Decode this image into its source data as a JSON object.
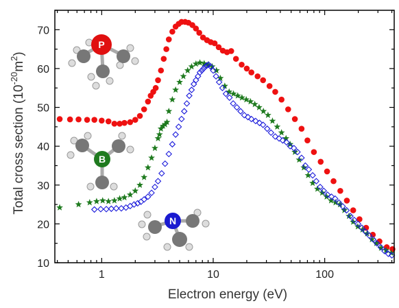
{
  "chart_data": {
    "type": "scatter",
    "x_scale": "log",
    "xlim": [
      0.38,
      420
    ],
    "ylim": [
      10,
      75
    ],
    "grid": false,
    "xlabel": "Electron energy (eV)",
    "ylabel_main": "Total cross section (10",
    "ylabel_exp": "-20",
    "ylabel_mid": "m",
    "ylabel_exp2": "2",
    "ylabel_end": ")",
    "x_ticks": [
      {
        "value": 1,
        "label": "1"
      },
      {
        "value": 10,
        "label": "10"
      },
      {
        "value": 100,
        "label": "100"
      }
    ],
    "y_ticks": [
      {
        "value": 10,
        "label": "10"
      },
      {
        "value": 20,
        "label": "20"
      },
      {
        "value": 30,
        "label": "30"
      },
      {
        "value": 40,
        "label": "40"
      },
      {
        "value": 50,
        "label": "50"
      },
      {
        "value": 60,
        "label": "60"
      },
      {
        "value": 70,
        "label": "70"
      }
    ],
    "series": [
      {
        "marker": "filled-circle",
        "color": "#ee1111",
        "points": [
          [
            0.42,
            47.0
          ],
          [
            0.52,
            46.9
          ],
          [
            0.62,
            46.9
          ],
          [
            0.74,
            46.8
          ],
          [
            0.86,
            46.8
          ],
          [
            1.0,
            46.6
          ],
          [
            1.15,
            46.4
          ],
          [
            1.3,
            45.8
          ],
          [
            1.45,
            45.8
          ],
          [
            1.6,
            46.0
          ],
          [
            1.8,
            46.2
          ],
          [
            2.0,
            46.8
          ],
          [
            2.2,
            47.8
          ],
          [
            2.4,
            49.5
          ],
          [
            2.6,
            51.5
          ],
          [
            2.75,
            53.0
          ],
          [
            2.9,
            54.0
          ],
          [
            3.05,
            55.0
          ],
          [
            3.2,
            57.0
          ],
          [
            3.4,
            59.5
          ],
          [
            3.6,
            62.5
          ],
          [
            3.8,
            65.0
          ],
          [
            4.0,
            67.5
          ],
          [
            4.3,
            69.5
          ],
          [
            4.6,
            70.8
          ],
          [
            4.9,
            71.5
          ],
          [
            5.2,
            72.0
          ],
          [
            5.6,
            72.0
          ],
          [
            6.0,
            71.8
          ],
          [
            6.5,
            71.2
          ],
          [
            7.0,
            70.3
          ],
          [
            7.5,
            69.2
          ],
          [
            8.1,
            68.0
          ],
          [
            8.8,
            67.3
          ],
          [
            9.5,
            66.8
          ],
          [
            10.3,
            66.5
          ],
          [
            11.2,
            65.5
          ],
          [
            12.2,
            64.6
          ],
          [
            13.3,
            64.2
          ],
          [
            14.5,
            64.5
          ],
          [
            16,
            62.5
          ],
          [
            18,
            61.0
          ],
          [
            20,
            60.0
          ],
          [
            22,
            59.0
          ],
          [
            25,
            58.0
          ],
          [
            28,
            57.0
          ],
          [
            32,
            55.5
          ],
          [
            36,
            54.0
          ],
          [
            41,
            52.0
          ],
          [
            47,
            49.5
          ],
          [
            54,
            47.0
          ],
          [
            62,
            44.5
          ],
          [
            70,
            41.5
          ],
          [
            80,
            38.5
          ],
          [
            92,
            36.0
          ],
          [
            105,
            33.5
          ],
          [
            120,
            31.0
          ],
          [
            138,
            28.5
          ],
          [
            158,
            26.0
          ],
          [
            180,
            23.5
          ],
          [
            205,
            21.2
          ],
          [
            235,
            19.0
          ],
          [
            270,
            17.2
          ],
          [
            310,
            15.5
          ],
          [
            360,
            14.0
          ],
          [
            405,
            13.5
          ]
        ]
      },
      {
        "marker": "filled-star",
        "color": "#1e7a1e",
        "points": [
          [
            0.42,
            24.2
          ],
          [
            0.62,
            25.0
          ],
          [
            0.78,
            25.5
          ],
          [
            0.9,
            25.8
          ],
          [
            1.02,
            26.0
          ],
          [
            1.15,
            25.8
          ],
          [
            1.3,
            26.0
          ],
          [
            1.45,
            26.5
          ],
          [
            1.6,
            26.8
          ],
          [
            1.8,
            27.5
          ],
          [
            2.0,
            28.5
          ],
          [
            2.2,
            30.0
          ],
          [
            2.4,
            32.0
          ],
          [
            2.6,
            34.5
          ],
          [
            2.8,
            37.0
          ],
          [
            3.0,
            39.5
          ],
          [
            3.2,
            42.0
          ],
          [
            3.3,
            43.0
          ],
          [
            3.4,
            44.5
          ],
          [
            3.55,
            45.2
          ],
          [
            3.7,
            45.6
          ],
          [
            3.85,
            46.2
          ],
          [
            4.0,
            49.0
          ],
          [
            4.3,
            52.0
          ],
          [
            4.6,
            54.5
          ],
          [
            5.0,
            56.5
          ],
          [
            5.4,
            58.0
          ],
          [
            5.9,
            59.5
          ],
          [
            6.4,
            60.5
          ],
          [
            7.0,
            61.2
          ],
          [
            7.6,
            61.5
          ],
          [
            8.3,
            61.3
          ],
          [
            9.0,
            61.0
          ],
          [
            9.8,
            60.5
          ],
          [
            10.7,
            59.5
          ],
          [
            11.6,
            57.5
          ],
          [
            12.7,
            55.5
          ],
          [
            13.9,
            54.0
          ],
          [
            15.2,
            53.5
          ],
          [
            16.6,
            53.0
          ],
          [
            18.1,
            52.5
          ],
          [
            19.8,
            52.0
          ],
          [
            21.6,
            51.5
          ],
          [
            23.6,
            50.8
          ],
          [
            25.8,
            50.0
          ],
          [
            28.2,
            49.0
          ],
          [
            31,
            48.0
          ],
          [
            34,
            46.5
          ],
          [
            37.5,
            45.0
          ],
          [
            41,
            43.5
          ],
          [
            45,
            42.0
          ],
          [
            49,
            40.5
          ],
          [
            54,
            38.5
          ],
          [
            59,
            36.5
          ],
          [
            65,
            34.5
          ],
          [
            71,
            32.5
          ],
          [
            78,
            30.5
          ],
          [
            86,
            29.0
          ],
          [
            95,
            28.0
          ],
          [
            104,
            27.0
          ],
          [
            114,
            26.0
          ],
          [
            125,
            25.5
          ],
          [
            137,
            25.0
          ],
          [
            150,
            23.5
          ],
          [
            165,
            22.0
          ],
          [
            180,
            20.5
          ],
          [
            198,
            19.3
          ],
          [
            218,
            18.5
          ],
          [
            240,
            17.5
          ],
          [
            265,
            16.0
          ],
          [
            290,
            15.0
          ],
          [
            320,
            13.8
          ],
          [
            355,
            13.2
          ],
          [
            395,
            12.5
          ]
        ]
      },
      {
        "marker": "open-diamond",
        "color": "#1a1adb",
        "points": [
          [
            0.86,
            23.7
          ],
          [
            0.98,
            23.8
          ],
          [
            1.1,
            23.8
          ],
          [
            1.22,
            23.9
          ],
          [
            1.35,
            24.0
          ],
          [
            1.5,
            24.0
          ],
          [
            1.65,
            24.2
          ],
          [
            1.8,
            24.6
          ],
          [
            1.95,
            25.0
          ],
          [
            2.1,
            25.3
          ],
          [
            2.25,
            25.7
          ],
          [
            2.4,
            26.3
          ],
          [
            2.6,
            27.0
          ],
          [
            2.8,
            28.0
          ],
          [
            3.0,
            29.5
          ],
          [
            3.2,
            31.0
          ],
          [
            3.45,
            33.0
          ],
          [
            3.7,
            35.5
          ],
          [
            4.0,
            38.0
          ],
          [
            4.3,
            40.5
          ],
          [
            4.6,
            43.0
          ],
          [
            4.9,
            45.0
          ],
          [
            5.2,
            47.0
          ],
          [
            5.5,
            49.0
          ],
          [
            5.8,
            51.0
          ],
          [
            6.1,
            53.0
          ],
          [
            6.4,
            54.5
          ],
          [
            6.7,
            56.0
          ],
          [
            7.0,
            57.0
          ],
          [
            7.3,
            58.0
          ],
          [
            7.6,
            59.0
          ],
          [
            7.9,
            59.5
          ],
          [
            8.2,
            60.0
          ],
          [
            8.5,
            60.5
          ],
          [
            8.8,
            60.8
          ],
          [
            9.1,
            61.0
          ],
          [
            9.5,
            60.5
          ],
          [
            10.0,
            59.5
          ],
          [
            10.6,
            58.0
          ],
          [
            11.3,
            56.5
          ],
          [
            12.1,
            55.0
          ],
          [
            13.0,
            53.5
          ],
          [
            14.0,
            52.5
          ],
          [
            15.1,
            51.0
          ],
          [
            16.3,
            50.0
          ],
          [
            17.6,
            49.0
          ],
          [
            19.0,
            48.0
          ],
          [
            20.5,
            47.5
          ],
          [
            22,
            47.0
          ],
          [
            24,
            46.5
          ],
          [
            26,
            46.0
          ],
          [
            28,
            45.5
          ],
          [
            30.5,
            44.5
          ],
          [
            33,
            43.5
          ],
          [
            36,
            42.5
          ],
          [
            39,
            42.0
          ],
          [
            42,
            41.5
          ],
          [
            45.5,
            41.0
          ],
          [
            49,
            40.0
          ],
          [
            53,
            39.5
          ],
          [
            57,
            38.5
          ],
          [
            62,
            37.0
          ],
          [
            67,
            35.0
          ],
          [
            72,
            34.0
          ],
          [
            78,
            32.5
          ],
          [
            84,
            31.0
          ],
          [
            91,
            29.5
          ],
          [
            98,
            28.5
          ],
          [
            106,
            27.5
          ],
          [
            115,
            27.0
          ],
          [
            124,
            26.5
          ],
          [
            134,
            25.5
          ],
          [
            145,
            24.5
          ],
          [
            157,
            23.5
          ],
          [
            170,
            22.0
          ],
          [
            184,
            21.0
          ],
          [
            199,
            20.0
          ],
          [
            215,
            19.0
          ],
          [
            232,
            18.0
          ],
          [
            251,
            17.0
          ],
          [
            272,
            16.0
          ],
          [
            294,
            15.0
          ],
          [
            318,
            14.0
          ],
          [
            344,
            13.0
          ],
          [
            372,
            12.3
          ],
          [
            400,
            11.9
          ]
        ]
      }
    ],
    "molecules": [
      {
        "label": "P",
        "ball_color": "#e01010"
      },
      {
        "label": "B",
        "ball_color": "#1f7a1f"
      },
      {
        "label": "N",
        "ball_color": "#1a1ad0"
      }
    ]
  }
}
